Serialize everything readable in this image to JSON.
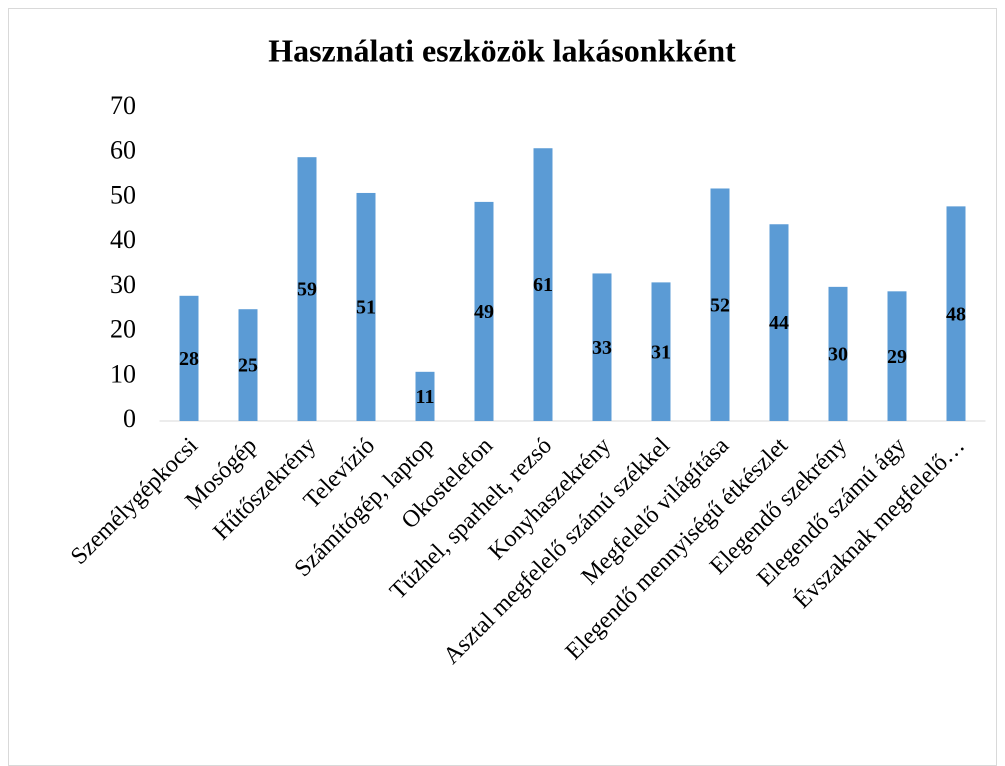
{
  "chart_data": {
    "type": "bar",
    "title": "Használati eszközök lakásonkként",
    "categories": [
      "Személygépkocsi",
      "Mosógép",
      "Hűtőszekrény",
      "Televízió",
      "Számítógép, laptop",
      "Okostelefon",
      "Tűzhel, sparhelt, rezsó",
      "Konyhaszekrény",
      "Asztal megfelelő számú székkel",
      "Megfelelő világítása",
      "Elegendő mennyiségű étkészlet",
      "Elegendő szekrény",
      "Elegendő számú ágy",
      "Évszaknak megfelelő…"
    ],
    "values": [
      28,
      25,
      59,
      51,
      11,
      49,
      61,
      33,
      31,
      52,
      44,
      30,
      29,
      48
    ],
    "color": "#5b9bd5",
    "ylim": [
      0,
      70
    ],
    "yticks": [
      0,
      10,
      20,
      30,
      40,
      50,
      60,
      70
    ],
    "grid": false
  }
}
